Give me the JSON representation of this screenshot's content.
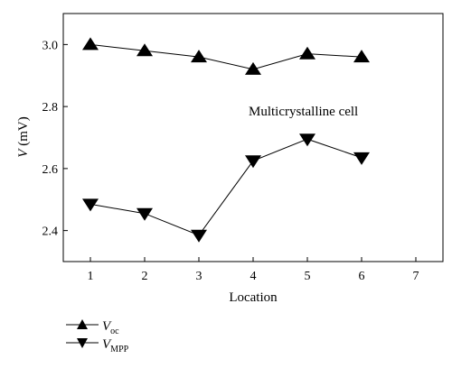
{
  "chart_data": {
    "type": "line",
    "xlabel": "Location",
    "ylabel": {
      "var": "V",
      "unit": " (mV)"
    },
    "x": [
      1,
      2,
      3,
      4,
      5,
      6
    ],
    "xlim": [
      0.5,
      7.5
    ],
    "ylim": [
      2.3,
      3.1
    ],
    "xticks": [
      1,
      2,
      3,
      4,
      5,
      6,
      7
    ],
    "yticks": [
      "2.4",
      "2.6",
      "2.8",
      "3.0"
    ],
    "annotation": "Multicrystalline cell",
    "legend_position": "bottom-left, below plot",
    "series": [
      {
        "name": "V",
        "name_sub": "oc",
        "marker": "triangle-up",
        "values": [
          3.0,
          2.98,
          2.96,
          2.92,
          2.97,
          2.96
        ]
      },
      {
        "name": "V",
        "name_sub": "MPP",
        "marker": "triangle-down",
        "values": [
          2.485,
          2.455,
          2.385,
          2.625,
          2.695,
          2.635
        ]
      }
    ]
  }
}
